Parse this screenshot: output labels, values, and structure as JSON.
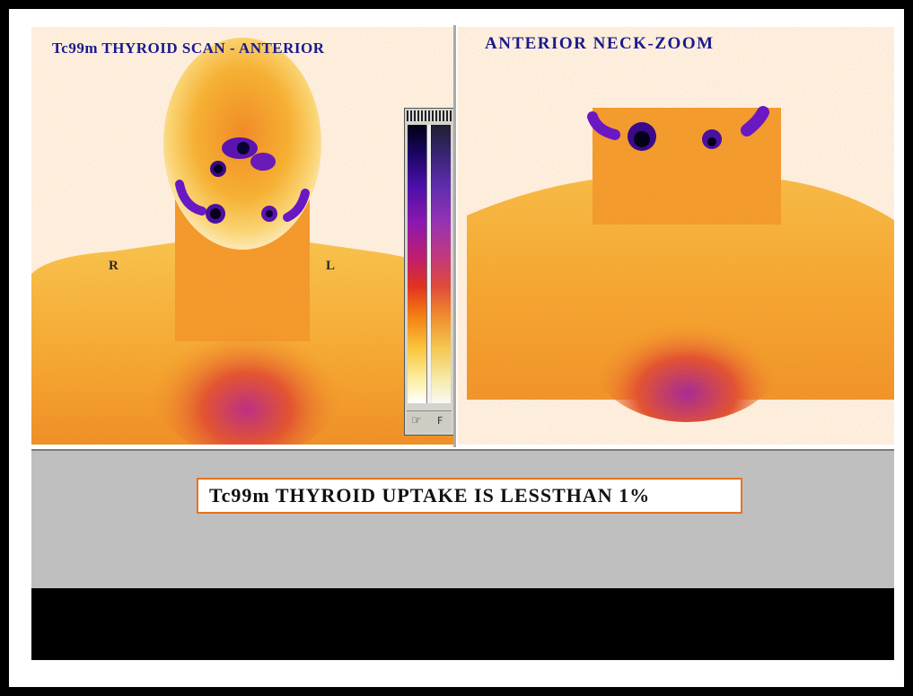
{
  "left_view": {
    "title": "Tc99m THYROID SCAN - ANTERIOR",
    "marker_right": "R",
    "marker_left": "L"
  },
  "right_view": {
    "title": "ANTERIOR NECK-ZOOM"
  },
  "color_scale": {
    "colors": [
      "#000014",
      "#1a0560",
      "#4a0fa8",
      "#8a18b0",
      "#c01e6c",
      "#e0331f",
      "#f47a12",
      "#f9c43a",
      "#fbf1a8",
      "#ffffff"
    ],
    "icons": [
      "hand-icon",
      "f-icon"
    ],
    "f_label": "F"
  },
  "result": {
    "message": "Tc99m THYROID UPTAKE IS LESSTHAN  1%"
  },
  "colors": {
    "title_blue": "#1a1a8c",
    "box_border": "#e8721c",
    "band_grey": "#bfbfbf"
  }
}
